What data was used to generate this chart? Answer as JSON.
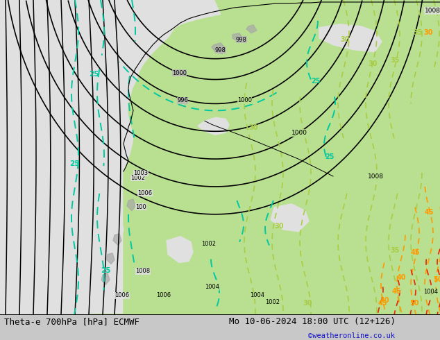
{
  "title_left": "Theta-e 700hPa [hPa] ECMWF",
  "title_right": "Mo 10-06-2024 18:00 UTC (12+126)",
  "credit": "©weatheronline.co.uk",
  "bg_map": "#e0e0e0",
  "land_green": "#b8e090",
  "land_gray": "#b8b8b8",
  "black": "#000000",
  "cyan": "#00c8a0",
  "yellow_green": "#aacc44",
  "orange": "#ff9900",
  "red": "#ee2200",
  "bottom_bar": "#c8c8c8",
  "figsize": [
    6.34,
    4.9
  ],
  "dpi": 100,
  "title_fontsize": 9,
  "credit_color": "#1111cc",
  "credit_fontsize": 7.5
}
